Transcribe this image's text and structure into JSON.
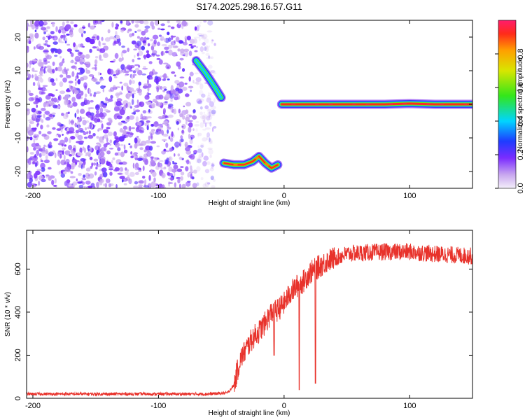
{
  "chart_data": [
    {
      "type": "heatmap",
      "title": "S174.2025.298.16.57.G11",
      "xlabel": "Height of straight line (km)",
      "ylabel": "Frequency (Hz)",
      "xlim": [
        -205,
        150
      ],
      "ylim": [
        -25,
        25
      ],
      "xticks": [
        -200,
        -100,
        0,
        100
      ],
      "yticks": [
        -20,
        -10,
        0,
        10,
        20
      ],
      "colorbar": {
        "label": "Normalized spectral amplitude",
        "range": [
          0,
          1
        ],
        "ticks": [
          0.0,
          0.2,
          0.4,
          0.6,
          0.8
        ]
      },
      "features": [
        {
          "name": "noise-region",
          "x_range": [
            -205,
            -50
          ],
          "y_range": [
            -25,
            25
          ],
          "amplitude": 0.15
        },
        {
          "name": "rising-trace",
          "points": [
            [
              -70,
              13
            ],
            [
              -62,
              9
            ],
            [
              -55,
              5
            ],
            [
              -50,
              2
            ]
          ],
          "amplitude": 0.4
        },
        {
          "name": "lower-trace",
          "points": [
            [
              -48,
              -17.5
            ],
            [
              -40,
              -18
            ],
            [
              -32,
              -18
            ],
            [
              -25,
              -17
            ],
            [
              -20,
              -15.5
            ],
            [
              -15,
              -17.5
            ],
            [
              -10,
              -19
            ],
            [
              -5,
              -18
            ]
          ],
          "amplitude": 0.85
        },
        {
          "name": "main-trace",
          "points": [
            [
              -2,
              0
            ],
            [
              40,
              0
            ],
            [
              80,
              0
            ],
            [
              100,
              0.2
            ],
            [
              120,
              0
            ],
            [
              150,
              0
            ]
          ],
          "amplitude": 0.95
        }
      ]
    },
    {
      "type": "line",
      "xlabel": "Height of straight line (km)",
      "ylabel": "SNR (10 * v/v)",
      "xlim": [
        -205,
        150
      ],
      "ylim": [
        0,
        780
      ],
      "xticks": [
        -200,
        -100,
        0,
        100
      ],
      "yticks": [
        0,
        200,
        400,
        600
      ],
      "series": [
        {
          "name": "SNR",
          "color": "#e8322b",
          "x": [
            -205,
            -150,
            -100,
            -60,
            -45,
            -40,
            -35,
            -30,
            -25,
            -20,
            -15,
            -10,
            -5,
            0,
            5,
            10,
            15,
            20,
            25,
            30,
            35,
            40,
            50,
            60,
            80,
            100,
            120,
            150
          ],
          "y": [
            20,
            20,
            20,
            20,
            25,
            60,
            180,
            230,
            280,
            310,
            350,
            400,
            410,
            440,
            490,
            520,
            540,
            580,
            600,
            620,
            640,
            650,
            670,
            675,
            680,
            680,
            670,
            660
          ]
        }
      ],
      "dropouts": [
        [
          -8,
          200
        ],
        [
          12,
          40
        ],
        [
          25,
          70
        ]
      ]
    }
  ]
}
